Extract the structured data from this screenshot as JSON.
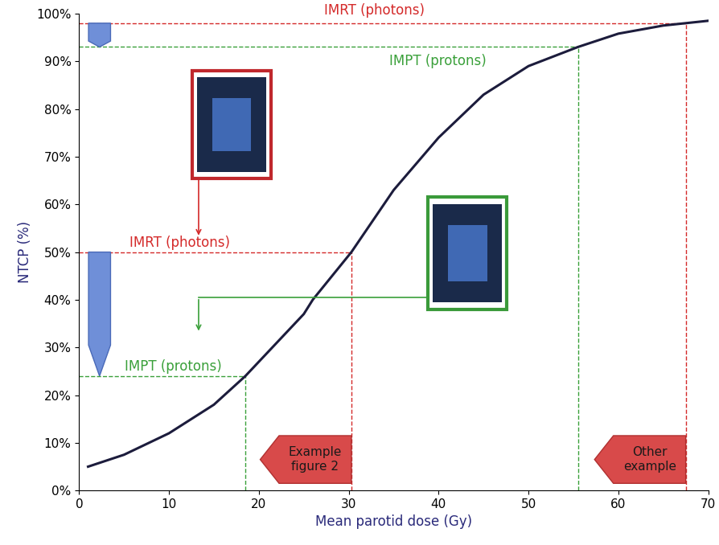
{
  "chart_data": {
    "type": "line",
    "x_label": "Mean parotid dose (Gy)",
    "y_label": "NTCP (%)",
    "series": [
      {
        "name": "NTCP",
        "color": "#1c1c3c",
        "x": [
          1,
          5,
          10,
          15,
          18.5,
          20,
          25,
          26,
          30.3,
          35,
          40,
          45,
          50,
          55.5,
          60,
          65,
          67.5,
          70
        ],
        "values": [
          5,
          7.5,
          12,
          18,
          24,
          27,
          37,
          40,
          50,
          63,
          74,
          83,
          89,
          93,
          95.8,
          97.5,
          98,
          98.5
        ]
      }
    ],
    "xlim": [
      0,
      70
    ],
    "ylim": [
      0,
      100
    ],
    "xticks": [
      0,
      10,
      20,
      30,
      40,
      50,
      60,
      70
    ],
    "yticks": [
      {
        "value": 0,
        "label": "0%"
      },
      {
        "value": 10,
        "label": "10%"
      },
      {
        "value": 20,
        "label": "20%"
      },
      {
        "value": 30,
        "label": "30%"
      },
      {
        "value": 40,
        "label": "40%"
      },
      {
        "value": 50,
        "label": "50%"
      },
      {
        "value": 60,
        "label": "60%"
      },
      {
        "value": 70,
        "label": "70%"
      },
      {
        "value": 80,
        "label": "80%"
      },
      {
        "value": 90,
        "label": "90%"
      },
      {
        "value": 100,
        "label": "100%"
      }
    ],
    "annotations": [
      {
        "text": "IMRT (photons)",
        "x": 67.5,
        "y": 98,
        "color": "#d42a2a"
      },
      {
        "text": "IMPT (protons)",
        "x": 55.5,
        "y": 93,
        "color": "#3aa03a"
      },
      {
        "text": "IMRT (photons)",
        "x": 30.3,
        "y": 50,
        "color": "#d42a2a"
      },
      {
        "text": "IMPT (protons)",
        "x": 18.5,
        "y": 24,
        "color": "#3aa03a"
      }
    ],
    "callouts": [
      {
        "text": "Example figure 2",
        "x": 30.3
      },
      {
        "text": "Other example",
        "x": 67.5
      }
    ]
  }
}
